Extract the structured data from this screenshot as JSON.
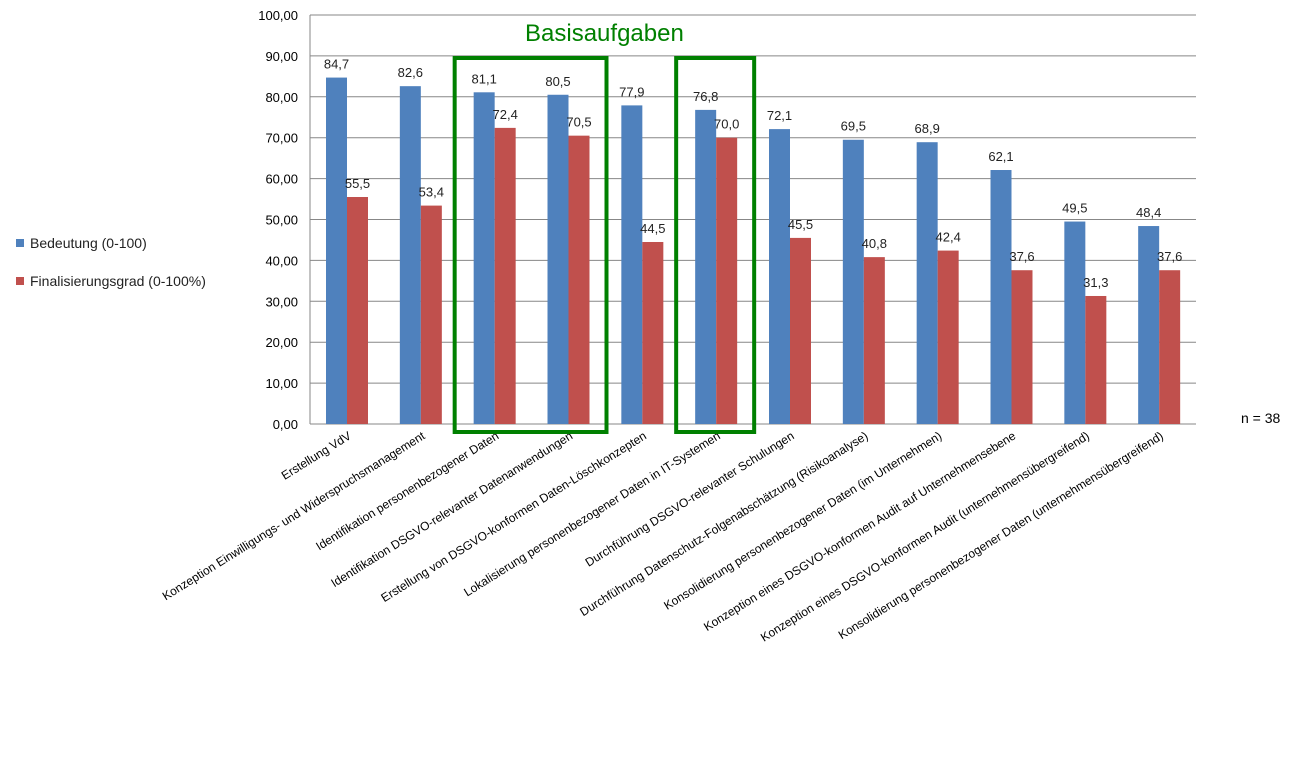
{
  "chart_data": {
    "type": "bar",
    "categories": [
      "Erstellung VdV",
      "Konzeption Einwilligungs- und Widerspruchsmanagement",
      "Identifikation personenbezogener Daten",
      "Identifikation DSGVO-relevanter Datenanwendungen",
      "Erstellung von DSGVO-konformen Daten-Löschkonzepten",
      "Lokalisierung personenbezogener Daten in IT-Systemen",
      "Durchführung DSGVO-relevanter Schulungen",
      "Durchführung Datenschutz-Folgenabschätzung (Risikoanalyse)",
      "Konsolidierung  personenbezogener Daten  (im Unternehmen)",
      "Konzeption eines DSGVO-konformen Audit auf Unternehmensebene",
      "Konzeption eines DSGVO-konformen Audit  (unternehmensübergreifend)",
      "Konsolidierung  personenbezogener Daten (unternehmensübergreifend)"
    ],
    "series": [
      {
        "name": "Bedeutung (0-100)",
        "color": "#4F81BD",
        "values": [
          84.7,
          82.6,
          81.1,
          80.5,
          77.9,
          76.8,
          72.1,
          69.5,
          68.9,
          62.1,
          49.5,
          48.4
        ],
        "labels": [
          "84,7",
          "82,6",
          "81,1",
          "80,5",
          "77,9",
          "76,8",
          "72,1",
          "69,5",
          "68,9",
          "62,1",
          "49,5",
          "48,4"
        ]
      },
      {
        "name": "Finalisierungsgrad (0-100%)",
        "color": "#C0504D",
        "values": [
          55.5,
          53.4,
          72.4,
          70.5,
          44.5,
          70.0,
          45.5,
          40.8,
          42.4,
          37.6,
          31.3,
          37.6
        ],
        "labels": [
          "55,5",
          "53,4",
          "72,4",
          "70,5",
          "44,5",
          "70,0",
          "45,5",
          "40,8",
          "42,4",
          "37,6",
          "31,3",
          "37,6"
        ]
      }
    ],
    "ylim": [
      0,
      100
    ],
    "yticks": [
      "0,00",
      "10,00",
      "20,00",
      "30,00",
      "40,00",
      "50,00",
      "60,00",
      "70,00",
      "80,00",
      "90,00",
      "100,00"
    ],
    "grid": true,
    "legend_position": "left",
    "highlight": {
      "label": "Basisaufgaben",
      "color": "#008000",
      "groups": [
        [
          2,
          3
        ],
        [
          5,
          5
        ]
      ]
    },
    "annotation": "n = 38"
  }
}
